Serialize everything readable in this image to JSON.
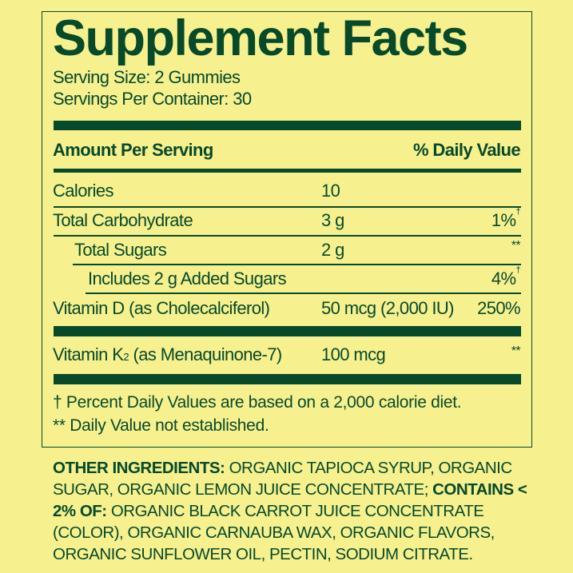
{
  "title": "Supplement Facts",
  "serving_size": "Serving Size: 2 Gummies",
  "servings_per_container": "Servings Per Container: 30",
  "header": {
    "amount": "Amount Per Serving",
    "daily_value": "% Daily Value"
  },
  "rows": [
    {
      "name": "Calories",
      "amount": "10",
      "dv": "",
      "mark": ""
    },
    {
      "name": "Total Carbohydrate",
      "amount": "3 g",
      "dv": "1%",
      "mark": "†"
    },
    {
      "name": "Total Sugars",
      "amount": "2 g",
      "dv": "**",
      "mark": ""
    },
    {
      "name": "Includes 2 g Added Sugars",
      "amount": "",
      "dv": "4%",
      "mark": "†"
    },
    {
      "name": "Vitamin D (as Cholecalciferol)",
      "amount": "50 mcg (2,000 IU)",
      "dv": "250%",
      "mark": ""
    },
    {
      "name_pre": "Vitamin K",
      "name_sub": "2",
      "name_post": " (as Menaquinone-7)",
      "amount": "100 mcg",
      "dv": "**",
      "mark": ""
    }
  ],
  "footnotes": [
    "† Percent Daily Values are based on a 2,000 calorie diet.",
    "** Daily Value not established."
  ],
  "ingredients": {
    "label1": "OTHER INGREDIENTS:",
    "text1": " ORGANIC TAPIOCA SYRUP, ORGANIC SUGAR, ORGANIC LEMON JUICE CONCENTRATE; ",
    "label2": "CONTAINS < 2% OF:",
    "text2": " ORGANIC BLACK CARROT JUICE CONCENTRATE (COLOR), ORGANIC CARNAUBA WAX, ORGANIC FLAVORS, ORGANIC SUNFLOWER OIL, PECTIN, SODIUM CITRATE."
  },
  "colors": {
    "background": "#f7f08f",
    "ink": "#064a2a"
  }
}
